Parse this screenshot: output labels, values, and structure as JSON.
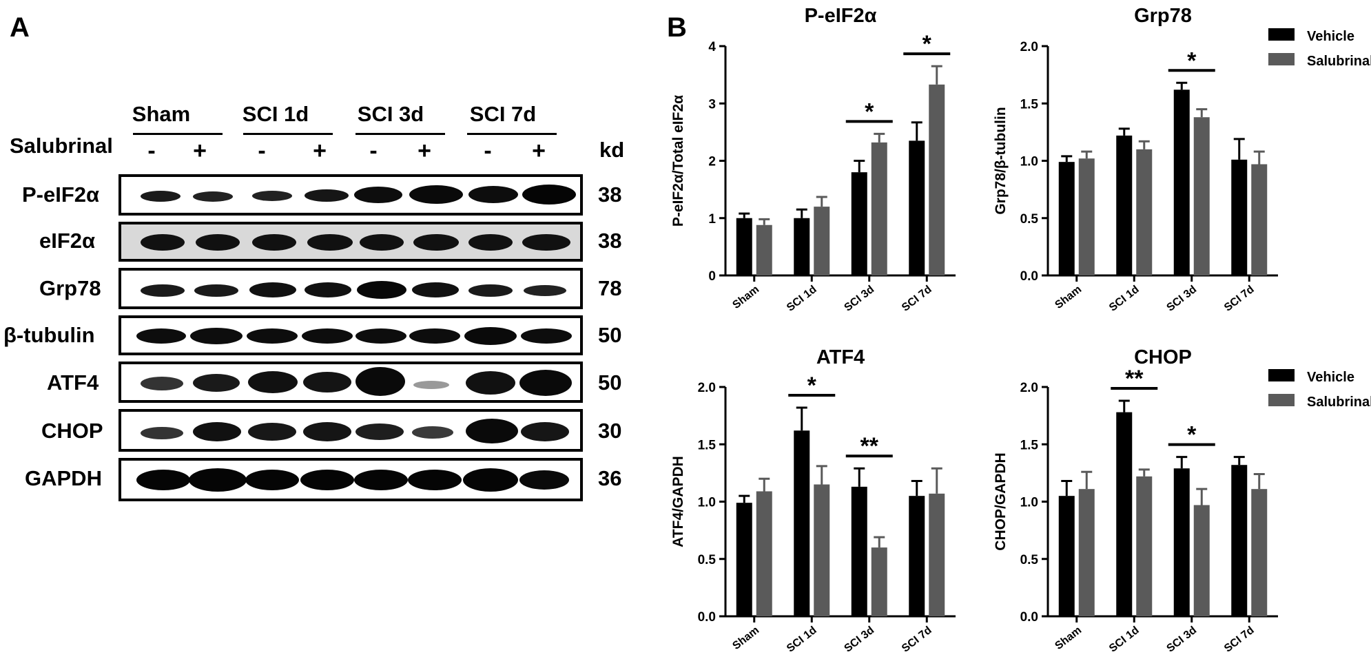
{
  "panel_a_letter": "A",
  "panel_b_letter": "B",
  "blot": {
    "groups": [
      "Sham",
      "SCI 1d",
      "SCI 3d",
      "SCI 7d"
    ],
    "treatment_label": "Salubrinal",
    "signs": [
      "-",
      "+",
      "-",
      "+",
      "-",
      "+",
      "-",
      "+"
    ],
    "kd_header": "kd",
    "rows": [
      {
        "label": "P-eIF2α",
        "kd": "38"
      },
      {
        "label": "eIF2α",
        "kd": "38"
      },
      {
        "label": "Grp78",
        "kd": "78"
      },
      {
        "label": "β-tubulin",
        "kd": "50"
      },
      {
        "label": "ATF4",
        "kd": "50"
      },
      {
        "label": "CHOP",
        "kd": "30"
      },
      {
        "label": "GAPDH",
        "kd": "36"
      }
    ]
  },
  "colors": {
    "vehicle": "#000000",
    "salubrinal": "#5a5a5a"
  },
  "chart_data": [
    {
      "type": "bar",
      "title": "P-eIF2α",
      "ylabel": "P-eIF2α/Total eIF2α",
      "categories": [
        "Sham",
        "SCI 1d",
        "SCI 3d",
        "SCI 7d"
      ],
      "ylim": [
        0,
        4
      ],
      "yticks": [
        "0",
        "1",
        "2",
        "3",
        "4"
      ],
      "series": [
        {
          "name": "Vehicle",
          "values": [
            1.0,
            1.0,
            1.8,
            2.35
          ],
          "errors": [
            0.08,
            0.15,
            0.2,
            0.32
          ]
        },
        {
          "name": "Salubrinal",
          "values": [
            0.88,
            1.2,
            2.32,
            3.33
          ],
          "errors": [
            0.1,
            0.17,
            0.15,
            0.32
          ]
        }
      ],
      "significance": [
        {
          "category": "SCI 3d",
          "label": "*"
        },
        {
          "category": "SCI 7d",
          "label": "*"
        }
      ]
    },
    {
      "type": "bar",
      "title": "Grp78",
      "ylabel": "Grp78/β-tubulin",
      "categories": [
        "Sham",
        "SCI 1d",
        "SCI 3d",
        "SCI 7d"
      ],
      "ylim": [
        0,
        2.0
      ],
      "yticks": [
        "0.0",
        "0.5",
        "1.0",
        "1.5",
        "2.0"
      ],
      "series": [
        {
          "name": "Vehicle",
          "values": [
            0.99,
            1.22,
            1.62,
            1.01
          ],
          "errors": [
            0.05,
            0.06,
            0.06,
            0.18
          ]
        },
        {
          "name": "Salubrinal",
          "values": [
            1.02,
            1.1,
            1.38,
            0.97
          ],
          "errors": [
            0.06,
            0.07,
            0.07,
            0.11
          ]
        }
      ],
      "significance": [
        {
          "category": "SCI 3d",
          "label": "*"
        }
      ],
      "legend": "top-right"
    },
    {
      "type": "bar",
      "title": "ATF4",
      "ylabel": "ATF4/GAPDH",
      "categories": [
        "Sham",
        "SCI 1d",
        "SCI 3d",
        "SCI 7d"
      ],
      "ylim": [
        0,
        2.0
      ],
      "yticks": [
        "0.0",
        "0.5",
        "1.0",
        "1.5",
        "2.0"
      ],
      "series": [
        {
          "name": "Vehicle",
          "values": [
            0.99,
            1.62,
            1.13,
            1.05
          ],
          "errors": [
            0.06,
            0.2,
            0.16,
            0.13
          ]
        },
        {
          "name": "Salubrinal",
          "values": [
            1.09,
            1.15,
            0.6,
            1.07
          ],
          "errors": [
            0.11,
            0.16,
            0.09,
            0.22
          ]
        }
      ],
      "significance": [
        {
          "category": "SCI 1d",
          "label": "*"
        },
        {
          "category": "SCI 3d",
          "label": "**"
        }
      ]
    },
    {
      "type": "bar",
      "title": "CHOP",
      "ylabel": "CHOP/GAPDH",
      "categories": [
        "Sham",
        "SCI 1d",
        "SCI 3d",
        "SCI 7d"
      ],
      "ylim": [
        0,
        2.0
      ],
      "yticks": [
        "0.0",
        "0.5",
        "1.0",
        "1.5",
        "2.0"
      ],
      "series": [
        {
          "name": "Vehicle",
          "values": [
            1.05,
            1.78,
            1.29,
            1.32
          ],
          "errors": [
            0.13,
            0.1,
            0.1,
            0.07
          ]
        },
        {
          "name": "Salubrinal",
          "values": [
            1.11,
            1.22,
            0.97,
            1.11
          ],
          "errors": [
            0.15,
            0.06,
            0.14,
            0.13
          ]
        }
      ],
      "significance": [
        {
          "category": "SCI 1d",
          "label": "**"
        },
        {
          "category": "SCI 3d",
          "label": "*"
        }
      ],
      "legend": "top-right"
    }
  ]
}
